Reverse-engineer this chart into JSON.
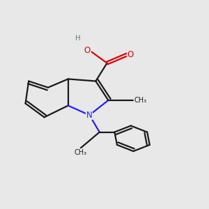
{
  "bg_color": "#e8e8e8",
  "bond_color": "#1a1a1a",
  "N_color": "#2020ff",
  "O_color": "#dd0000",
  "H_color": "#5a8080",
  "lw": 1.6,
  "figsize": [
    3.0,
    3.0
  ],
  "dpi": 100,
  "xlim": [
    0,
    10
  ],
  "ylim": [
    0,
    10
  ],
  "dbl_sep": 0.13
}
